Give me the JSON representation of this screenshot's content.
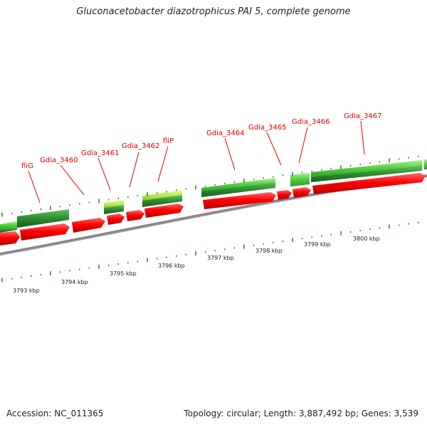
{
  "title": "Gluconacetobacter diazotrophicus PAI 5, complete genome",
  "accession": "Accession: NC_011365",
  "summary": "Topology: circular; Length: 3,887,492 bp; Genes: 3,539",
  "colors": {
    "forward_gene": "#ff0000",
    "cds_dark": "#2e8b2e",
    "cds_light": "#7ed957",
    "cds_yellow": "#c8f060",
    "label": "#e00000",
    "tick": "#2e7d32",
    "backbone": "#888888"
  },
  "kbp_labels": [
    "3793 kbp",
    "3794 kbp",
    "3795 kbp",
    "3796 kbp",
    "3797 kbp",
    "3798 kbp",
    "3799 kbp",
    "3800 kbp"
  ],
  "gene_labels": [
    "fliG",
    "Gdia_3460",
    "Gdia_3461",
    "Gdia_3462",
    "fliP",
    "Gdia_3464",
    "Gdia_3465",
    "Gdia_3466",
    "Gdia_3467"
  ]
}
